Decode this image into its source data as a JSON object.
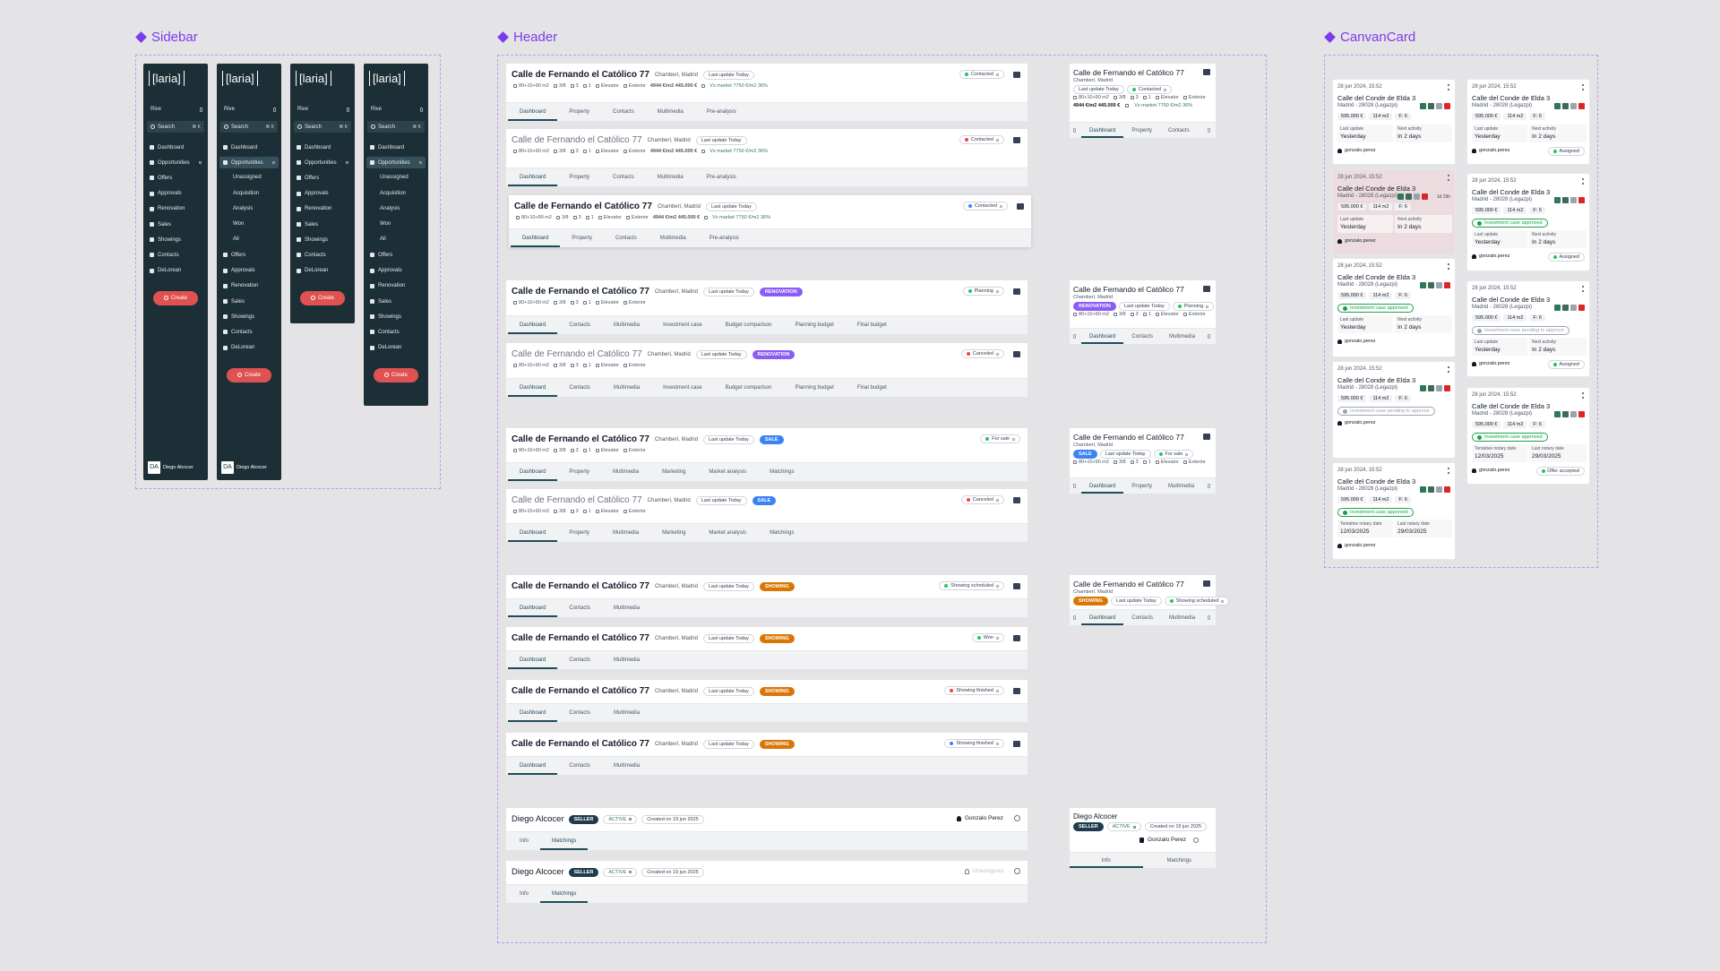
{
  "sections": [
    "Sidebar",
    "Header",
    "CanvanCard"
  ],
  "sidebar": {
    "logo": "[laria]",
    "workspace": "Rive",
    "search": "Search",
    "shortcut": "⌘ K",
    "items": [
      "Dashboard",
      "Opportunities",
      "Offers",
      "Approvals",
      "Renovation",
      "Sales",
      "Showings",
      "Contacts",
      "DeLorean"
    ],
    "subitems": [
      "Unassigned",
      "Acquisition",
      "Analysis",
      "Won",
      "All"
    ],
    "create": "Create",
    "user": {
      "initials": "DA",
      "name": "Diego Alcocer"
    }
  },
  "property_header": {
    "title": "Calle de Fernando el Católico 77",
    "location": "Chamberí, Madrid",
    "last_update": "Last update Today",
    "specs": [
      "80+10+90 m2",
      "3/8",
      "3",
      "1",
      "Elevator",
      "Exterior"
    ],
    "price": "4944 €/m2 445.000 €",
    "market": "Vs market 7750 €/m2 36%"
  },
  "header_groups": [
    {
      "tabs": [
        "Dashboard",
        "Property",
        "Contacts",
        "Multimedia",
        "Pre-analysis"
      ],
      "rows": [
        {
          "status": "Contacted",
          "dot": "#22c55e"
        },
        {
          "status": "Contacted",
          "dot": "#ef4444"
        },
        {
          "status": "Contacted",
          "dot": "#3b82f6"
        }
      ]
    },
    {
      "tag": "RENOVATION",
      "tag_color": "#8b5cf6",
      "tabs": [
        "Dashboard",
        "Contacts",
        "Multimedia",
        "Investment case",
        "Budget comparison",
        "Planning budget",
        "Final budget"
      ],
      "rows": [
        {
          "status": "Planning",
          "dot": "#22c55e"
        },
        {
          "status": "Canceled",
          "dot": "#ef4444"
        }
      ]
    },
    {
      "tag": "SALE",
      "tag_color": "#3b82f6",
      "tabs": [
        "Dashboard",
        "Property",
        "Multimedia",
        "Marketing",
        "Market analysis",
        "Matchings"
      ],
      "rows": [
        {
          "status": "For sale",
          "dot": "#22c55e"
        },
        {
          "status": "Canceled",
          "dot": "#ef4444"
        }
      ]
    },
    {
      "tag": "SHOWING",
      "tag_color": "#d97706",
      "tabs": [
        "Dashboard",
        "Contacts",
        "Multimedia"
      ],
      "rows": [
        {
          "status": "Showing scheduled",
          "dot": "#22c55e"
        },
        {
          "status": "Won",
          "dot": "#22c55e"
        },
        {
          "status": "Showing finished",
          "dot": "#ef4444"
        },
        {
          "status": "Showing finished",
          "dot": "#3b82f6"
        }
      ]
    }
  ],
  "contact_header": {
    "name": "Diego Alcocer",
    "role": "SELLER",
    "status": "ACTIVE",
    "created": "Created on 19 jun 2025",
    "tabs": [
      "Info",
      "Matchings"
    ],
    "assignee": "Gonzalo Perez",
    "unassigned": "Unassigned"
  },
  "kanban": {
    "date": "28 jun 2024, 15:52",
    "title": "Calle del Conde de Elda 3",
    "address": "Madrid - 28028 (Legazpi)",
    "chips": [
      "595.000 €",
      "114 m2",
      "F: 6"
    ],
    "user": "gonzalo.perez",
    "timer": "1d 19h",
    "columns": [
      [
        {
          "dates": [
            {
              "label": "Last update",
              "value": "Yesterday"
            },
            {
              "label": "Next activity",
              "value": "In 2 days"
            }
          ]
        },
        {
          "highlight": true,
          "dates": [
            {
              "label": "Last update",
              "value": "Yesterday"
            },
            {
              "label": "Next activity",
              "value": "In 2 days"
            }
          ]
        },
        {
          "badge": "Investment case approved",
          "badge_color": "#16a34a",
          "dates": [
            {
              "label": "Last update",
              "value": "Yesterday"
            },
            {
              "label": "Next activity",
              "value": "In 2 days"
            }
          ]
        },
        {
          "badge": "Investment case pending to approve",
          "badge_color": "#9ca3af"
        },
        {
          "badge": "Investment case approved",
          "badge_color": "#16a34a",
          "dates": [
            {
              "label": "Tentative notary date",
              "value": "12/03/2025"
            },
            {
              "label": "Last notary date",
              "value": "29/03/2025"
            }
          ]
        }
      ],
      [
        {
          "dates": [
            {
              "label": "Last update",
              "value": "Yesterday"
            },
            {
              "label": "Next activity",
              "value": "In 2 days"
            }
          ],
          "status": "Assigned"
        },
        {
          "badge": "Investment case approved",
          "badge_color": "#16a34a",
          "dates": [
            {
              "label": "Last update",
              "value": "Yesterday"
            },
            {
              "label": "Next activity",
              "value": "In 2 days"
            }
          ],
          "status": "Assigned"
        },
        {
          "badge": "Investment case pending to approve",
          "badge_color": "#9ca3af",
          "dates": [
            {
              "label": "Last update",
              "value": "Yesterday"
            },
            {
              "label": "Next activity",
              "value": "In 2 days"
            }
          ],
          "status": "Assigned"
        },
        {
          "badge": "Investment case approved",
          "badge_color": "#16a34a",
          "dates": [
            {
              "label": "Tentative notary date",
              "value": "12/03/2025"
            },
            {
              "label": "Last notary date",
              "value": "29/03/2025"
            }
          ],
          "status": "Offer accepted"
        }
      ]
    ]
  }
}
